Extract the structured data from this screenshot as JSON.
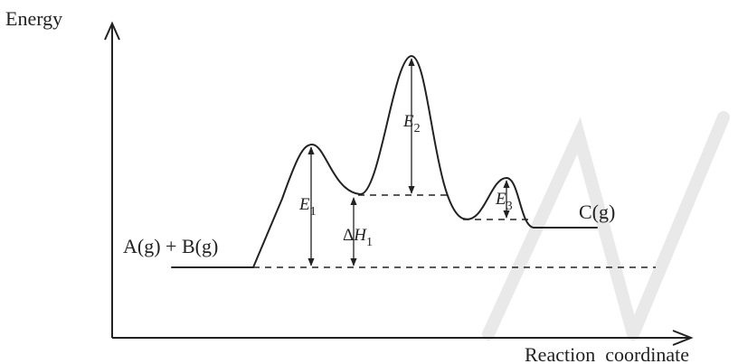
{
  "diagram": {
    "y_axis_label": "Energy",
    "x_axis_label": "Reaction  coordinate",
    "reactants_label": "A(g) + B(g)",
    "product_label": "C(g)",
    "energy_labels": {
      "e1": {
        "symbol": "E",
        "sub": "1"
      },
      "e2": {
        "symbol": "E",
        "sub": "2"
      },
      "e3": {
        "symbol": "E",
        "sub": "3"
      },
      "dh1": {
        "prefix": "Δ",
        "symbol": "H",
        "sub": "1"
      }
    }
  }
}
